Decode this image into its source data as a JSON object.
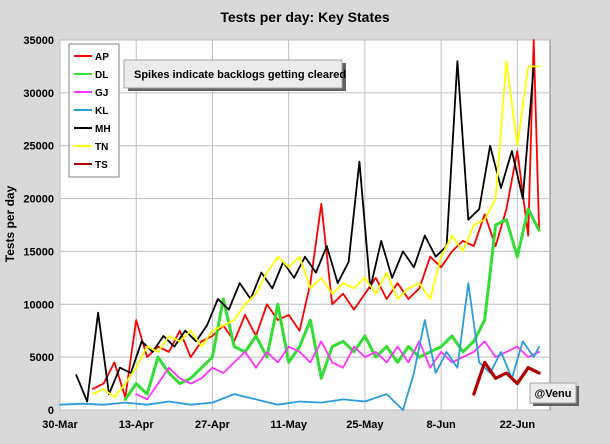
{
  "chart_data": {
    "type": "line",
    "title": "Tests per day: Key States",
    "xlabel": "",
    "ylabel": "Tests per day",
    "x_start": "2020-03-30",
    "x_end": "2020-06-28",
    "x_ticks": [
      "30-Mar",
      "13-Apr",
      "27-Apr",
      "11-May",
      "25-May",
      "8-Jun",
      "22-Jun"
    ],
    "ylim": [
      0,
      35000
    ],
    "y_ticks": [
      0,
      5000,
      10000,
      15000,
      20000,
      25000,
      30000,
      35000
    ],
    "grid": true,
    "legend_position": "top-left",
    "annotation": "Spikes indicate backlogs getting cleared",
    "credit": "@Venu",
    "colors": {
      "AP": "#ff0000",
      "DL": "#33dd33",
      "GJ": "#ff33ff",
      "KL": "#2b9be0",
      "MH": "#000000",
      "TN": "#ffff00",
      "TS": "#b00000",
      "plot_bg": "#ffffff",
      "page_bg": "#d9d9d9",
      "grid": "#bfbfbf"
    },
    "series": [
      {
        "name": "AP",
        "x": [
          "2020-04-05",
          "2020-04-07",
          "2020-04-09",
          "2020-04-11",
          "2020-04-13",
          "2020-04-15",
          "2020-04-17",
          "2020-04-19",
          "2020-04-21",
          "2020-04-23",
          "2020-04-25",
          "2020-04-27",
          "2020-04-29",
          "2020-05-01",
          "2020-05-03",
          "2020-05-05",
          "2020-05-07",
          "2020-05-09",
          "2020-05-11",
          "2020-05-13",
          "2020-05-15",
          "2020-05-17",
          "2020-05-19",
          "2020-05-21",
          "2020-05-23",
          "2020-05-25",
          "2020-05-27",
          "2020-05-29",
          "2020-05-31",
          "2020-06-02",
          "2020-06-04",
          "2020-06-06",
          "2020-06-08",
          "2020-06-10",
          "2020-06-12",
          "2020-06-14",
          "2020-06-16",
          "2020-06-18",
          "2020-06-20",
          "2020-06-22",
          "2020-06-24",
          "2020-06-25",
          "2020-06-26"
        ],
        "values": [
          2000,
          2500,
          4500,
          1200,
          8500,
          5000,
          6000,
          5500,
          7500,
          5000,
          6500,
          7000,
          8000,
          6500,
          9000,
          7000,
          10000,
          8500,
          9000,
          7500,
          12000,
          19500,
          10000,
          11000,
          9500,
          11000,
          12500,
          10500,
          12000,
          10500,
          11500,
          14500,
          13500,
          15000,
          16000,
          15500,
          18500,
          15500,
          19000,
          24500,
          16500,
          35000,
          17000
        ]
      },
      {
        "name": "DL",
        "x": [
          "2020-04-11",
          "2020-04-13",
          "2020-04-15",
          "2020-04-17",
          "2020-04-19",
          "2020-04-21",
          "2020-04-23",
          "2020-04-25",
          "2020-04-27",
          "2020-04-29",
          "2020-05-01",
          "2020-05-03",
          "2020-05-05",
          "2020-05-07",
          "2020-05-09",
          "2020-05-11",
          "2020-05-13",
          "2020-05-15",
          "2020-05-17",
          "2020-05-19",
          "2020-05-21",
          "2020-05-23",
          "2020-05-25",
          "2020-05-27",
          "2020-05-29",
          "2020-05-31",
          "2020-06-02",
          "2020-06-04",
          "2020-06-06",
          "2020-06-08",
          "2020-06-10",
          "2020-06-12",
          "2020-06-14",
          "2020-06-16",
          "2020-06-18",
          "2020-06-20",
          "2020-06-22",
          "2020-06-24",
          "2020-06-26"
        ],
        "values": [
          1000,
          2500,
          1500,
          5000,
          3500,
          2500,
          3000,
          4000,
          5000,
          10500,
          6000,
          5500,
          7000,
          5000,
          10000,
          4500,
          6000,
          8500,
          3000,
          6000,
          6500,
          5500,
          7000,
          5000,
          6000,
          4500,
          6000,
          5000,
          5500,
          6000,
          7000,
          5500,
          6500,
          8500,
          17500,
          18000,
          14500,
          19000,
          17000
        ]
      },
      {
        "name": "GJ",
        "x": [
          "2020-04-13",
          "2020-04-15",
          "2020-04-17",
          "2020-04-19",
          "2020-04-21",
          "2020-04-23",
          "2020-04-25",
          "2020-04-27",
          "2020-04-29",
          "2020-05-01",
          "2020-05-03",
          "2020-05-05",
          "2020-05-07",
          "2020-05-09",
          "2020-05-11",
          "2020-05-13",
          "2020-05-15",
          "2020-05-17",
          "2020-05-19",
          "2020-05-21",
          "2020-05-23",
          "2020-05-25",
          "2020-05-27",
          "2020-05-29",
          "2020-05-31",
          "2020-06-02",
          "2020-06-04",
          "2020-06-06",
          "2020-06-08",
          "2020-06-10",
          "2020-06-12",
          "2020-06-14",
          "2020-06-16",
          "2020-06-18",
          "2020-06-20",
          "2020-06-22",
          "2020-06-24",
          "2020-06-26"
        ],
        "values": [
          1500,
          1000,
          2500,
          4000,
          3000,
          2500,
          3000,
          4000,
          3500,
          4500,
          5500,
          4000,
          5500,
          4500,
          6000,
          5500,
          4500,
          6500,
          4500,
          4000,
          6000,
          5000,
          5500,
          4500,
          6000,
          4500,
          6500,
          4000,
          5500,
          4500,
          5000,
          5500,
          6500,
          5000,
          5500,
          6000,
          5000,
          5500
        ]
      },
      {
        "name": "KL",
        "x": [
          "2020-03-30",
          "2020-04-03",
          "2020-04-07",
          "2020-04-11",
          "2020-04-15",
          "2020-04-19",
          "2020-04-23",
          "2020-04-27",
          "2020-05-01",
          "2020-05-05",
          "2020-05-09",
          "2020-05-13",
          "2020-05-17",
          "2020-05-21",
          "2020-05-25",
          "2020-05-29",
          "2020-06-01",
          "2020-06-03",
          "2020-06-05",
          "2020-06-07",
          "2020-06-09",
          "2020-06-11",
          "2020-06-13",
          "2020-06-15",
          "2020-06-17",
          "2020-06-19",
          "2020-06-21",
          "2020-06-23",
          "2020-06-25",
          "2020-06-26"
        ],
        "values": [
          500,
          600,
          500,
          700,
          500,
          800,
          500,
          700,
          1500,
          1000,
          500,
          800,
          700,
          1000,
          800,
          1500,
          0,
          3500,
          8500,
          3500,
          5500,
          4000,
          12000,
          4500,
          3500,
          5500,
          3000,
          6500,
          5000,
          6000
        ]
      },
      {
        "name": "MH",
        "x": [
          "2020-04-02",
          "2020-04-04",
          "2020-04-06",
          "2020-04-08",
          "2020-04-10",
          "2020-04-12",
          "2020-04-14",
          "2020-04-16",
          "2020-04-18",
          "2020-04-20",
          "2020-04-22",
          "2020-04-24",
          "2020-04-26",
          "2020-04-28",
          "2020-04-30",
          "2020-05-02",
          "2020-05-04",
          "2020-05-06",
          "2020-05-08",
          "2020-05-10",
          "2020-05-12",
          "2020-05-14",
          "2020-05-16",
          "2020-05-18",
          "2020-05-20",
          "2020-05-22",
          "2020-05-24",
          "2020-05-26",
          "2020-05-28",
          "2020-05-30",
          "2020-06-01",
          "2020-06-03",
          "2020-06-05",
          "2020-06-07",
          "2020-06-09",
          "2020-06-11",
          "2020-06-13",
          "2020-06-15",
          "2020-06-17",
          "2020-06-19",
          "2020-06-21",
          "2020-06-23",
          "2020-06-25"
        ],
        "values": [
          3300,
          800,
          9200,
          1500,
          4000,
          3500,
          6500,
          5500,
          7000,
          6000,
          7500,
          6500,
          8000,
          10500,
          9500,
          12000,
          10500,
          13000,
          11500,
          14000,
          12500,
          14500,
          13000,
          15500,
          12000,
          14000,
          23500,
          11500,
          16000,
          12500,
          15000,
          13500,
          16500,
          14500,
          15500,
          33000,
          18000,
          19000,
          25000,
          21000,
          24500,
          20000,
          32500
        ]
      },
      {
        "name": "TN",
        "x": [
          "2020-04-05",
          "2020-04-07",
          "2020-04-09",
          "2020-04-11",
          "2020-04-13",
          "2020-04-15",
          "2020-04-17",
          "2020-04-19",
          "2020-04-21",
          "2020-04-23",
          "2020-04-25",
          "2020-04-27",
          "2020-04-29",
          "2020-05-01",
          "2020-05-03",
          "2020-05-05",
          "2020-05-07",
          "2020-05-09",
          "2020-05-11",
          "2020-05-13",
          "2020-05-15",
          "2020-05-17",
          "2020-05-19",
          "2020-05-21",
          "2020-05-23",
          "2020-05-25",
          "2020-05-27",
          "2020-05-29",
          "2020-05-31",
          "2020-06-02",
          "2020-06-04",
          "2020-06-06",
          "2020-06-08",
          "2020-06-10",
          "2020-06-12",
          "2020-06-14",
          "2020-06-16",
          "2020-06-18",
          "2020-06-20",
          "2020-06-22",
          "2020-06-24",
          "2020-06-26"
        ],
        "values": [
          1500,
          2000,
          1200,
          2500,
          4000,
          6000,
          5500,
          7000,
          6500,
          7500,
          6000,
          7500,
          8000,
          8500,
          10000,
          11000,
          13000,
          14500,
          13500,
          14500,
          11500,
          12500,
          11000,
          12000,
          11500,
          12500,
          11000,
          13000,
          10500,
          11500,
          12000,
          10500,
          14500,
          16500,
          15000,
          17500,
          18000,
          20000,
          33000,
          25000,
          32500,
          32500
        ]
      },
      {
        "name": "TS",
        "x": [
          "2020-06-14",
          "2020-06-16",
          "2020-06-18",
          "2020-06-20",
          "2020-06-22",
          "2020-06-24",
          "2020-06-26"
        ],
        "values": [
          1500,
          4500,
          3000,
          3500,
          2500,
          4000,
          3500
        ]
      }
    ]
  }
}
